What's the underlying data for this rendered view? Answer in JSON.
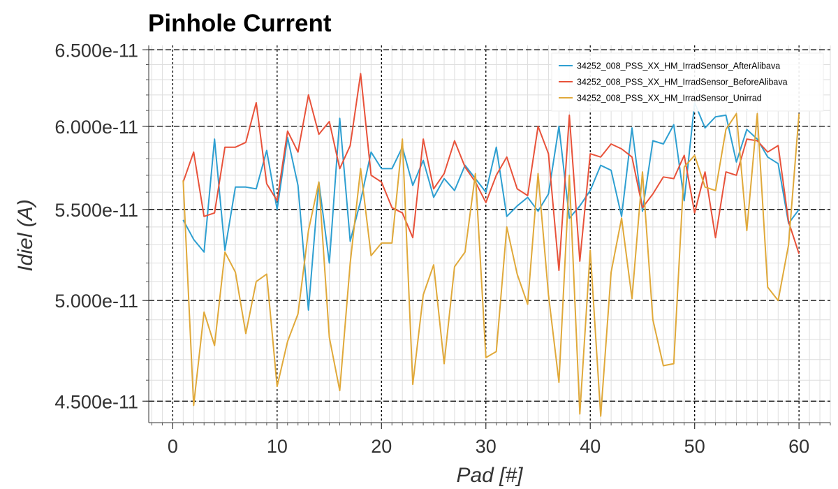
{
  "chart_data": {
    "type": "line",
    "title": "Pinhole Current",
    "xlabel": "Pad [#]",
    "ylabel": "Idiel (A)",
    "xlim": [
      -2.3,
      63.0
    ],
    "ylim": [
      4.4e-11,
      6.53e-11
    ],
    "x_ticks": [
      0,
      10,
      20,
      30,
      40,
      50,
      60
    ],
    "x_tick_labels": [
      "0",
      "10",
      "20",
      "30",
      "40",
      "50",
      "60"
    ],
    "y_ticks": [
      4.5e-11,
      5e-11,
      5.5e-11,
      6e-11,
      6.5e-11
    ],
    "y_tick_labels": [
      "4.500e-11",
      "5.000e-11",
      "5.500e-11",
      "6.000e-11",
      "6.500e-11"
    ],
    "log_y": true,
    "grid": true,
    "legend_position": "top-right",
    "x": [
      1,
      2,
      3,
      4,
      5,
      6,
      7,
      8,
      9,
      10,
      11,
      12,
      13,
      14,
      15,
      16,
      17,
      18,
      19,
      20,
      21,
      22,
      23,
      24,
      25,
      26,
      27,
      28,
      29,
      30,
      31,
      32,
      33,
      34,
      35,
      36,
      37,
      38,
      39,
      40,
      41,
      42,
      43,
      44,
      45,
      46,
      47,
      48,
      49,
      50,
      51,
      52,
      53,
      54,
      55,
      56,
      57,
      58,
      59,
      60
    ],
    "series": [
      {
        "name": "34252_008_PSS_XX_HM_IrradSensor_AfterAlibava",
        "color": "#2e9fd1",
        "values": [
          5.44e-11,
          5.33e-11,
          5.26e-11,
          5.92e-11,
          5.27e-11,
          5.63e-11,
          5.63e-11,
          5.62e-11,
          5.85e-11,
          5.5e-11,
          5.93e-11,
          5.64e-11,
          4.95e-11,
          5.66e-11,
          5.2e-11,
          6.05e-11,
          5.32e-11,
          5.55e-11,
          5.84e-11,
          5.74e-11,
          5.74e-11,
          5.87e-11,
          5.64e-11,
          5.79e-11,
          5.57e-11,
          5.68e-11,
          5.61e-11,
          5.76e-11,
          5.68e-11,
          5.6e-11,
          5.87e-11,
          5.46e-11,
          5.52e-11,
          5.57e-11,
          5.49e-11,
          5.59e-11,
          6e-11,
          5.45e-11,
          5.52e-11,
          5.61e-11,
          5.76e-11,
          5.73e-11,
          5.46e-11,
          5.99e-11,
          5.49e-11,
          5.91e-11,
          5.89e-11,
          6.01e-11,
          5.55e-11,
          6.15e-11,
          5.99e-11,
          6.06e-11,
          6.07e-11,
          5.78e-11,
          5.98e-11,
          5.92e-11,
          5.81e-11,
          5.77e-11,
          5.42e-11,
          5.5e-11
        ]
      },
      {
        "name": "34252_008_PSS_XX_HM_IrradSensor_BeforeAlibava",
        "color": "#e8523a",
        "values": [
          5.66e-11,
          5.84e-11,
          5.46e-11,
          5.48e-11,
          5.87e-11,
          5.87e-11,
          5.9e-11,
          6.15e-11,
          5.65e-11,
          5.55e-11,
          5.97e-11,
          5.84e-11,
          6.2e-11,
          5.95e-11,
          6.03e-11,
          5.74e-11,
          5.88e-11,
          6.34e-11,
          5.7e-11,
          5.66e-11,
          5.51e-11,
          5.48e-11,
          5.34e-11,
          5.92e-11,
          5.62e-11,
          5.71e-11,
          5.91e-11,
          5.75e-11,
          5.66e-11,
          5.54e-11,
          5.7e-11,
          5.81e-11,
          5.62e-11,
          5.58e-11,
          6e-11,
          5.83e-11,
          5.16e-11,
          6.07e-11,
          5.21e-11,
          5.83e-11,
          5.81e-11,
          5.89e-11,
          5.86e-11,
          5.81e-11,
          5.51e-11,
          5.59e-11,
          5.69e-11,
          5.68e-11,
          5.82e-11,
          5.48e-11,
          5.72e-11,
          5.34e-11,
          5.72e-11,
          5.7e-11,
          5.92e-11,
          5.91e-11,
          5.84e-11,
          5.88e-11,
          5.43e-11,
          5.25e-11
        ]
      },
      {
        "name": "34252_008_PSS_XX_HM_IrradSensor_Unirrad",
        "color": "#e0a93a",
        "values": [
          5.67e-11,
          4.48e-11,
          4.94e-11,
          4.77e-11,
          5.26e-11,
          5.15e-11,
          4.83e-11,
          5.1e-11,
          5.14e-11,
          4.57e-11,
          4.79e-11,
          4.93e-11,
          5.38e-11,
          5.66e-11,
          4.81e-11,
          4.55e-11,
          5.2e-11,
          5.74e-11,
          5.24e-11,
          5.31e-11,
          5.31e-11,
          5.92e-11,
          4.58e-11,
          5.03e-11,
          5.19e-11,
          4.68e-11,
          5.18e-11,
          5.26e-11,
          5.71e-11,
          4.71e-11,
          4.74e-11,
          5.4e-11,
          5.14e-11,
          4.98e-11,
          5.71e-11,
          5.03e-11,
          4.59e-11,
          5.7e-11,
          4.44e-11,
          5.27e-11,
          4.43e-11,
          5.15e-11,
          5.45e-11,
          5.01e-11,
          5.72e-11,
          4.9e-11,
          4.67e-11,
          4.68e-11,
          5.75e-11,
          5.82e-11,
          5.63e-11,
          5.61e-11,
          5.98e-11,
          6.08e-11,
          5.38e-11,
          6.08e-11,
          5.07e-11,
          5e-11,
          5.3e-11,
          6.08e-11
        ]
      }
    ]
  }
}
